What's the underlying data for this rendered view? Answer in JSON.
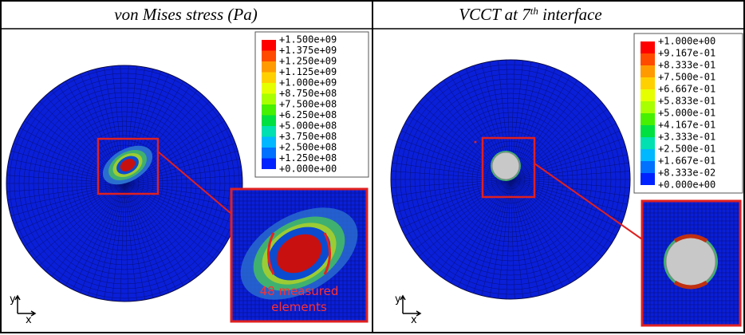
{
  "panels": [
    {
      "title": "von Mises stress (Pa)",
      "legend": [
        "+1.500e+09",
        "+1.375e+09",
        "+1.250e+09",
        "+1.125e+09",
        "+1.000e+09",
        "+8.750e+08",
        "+7.500e+08",
        "+6.250e+08",
        "+5.000e+08",
        "+3.750e+08",
        "+2.500e+08",
        "+1.250e+08",
        "+0.000e+00"
      ],
      "annotation": [
        "48 measured",
        "elements"
      ],
      "axes": [
        "y",
        "x"
      ]
    },
    {
      "title": [
        "VCCT at 7",
        "th",
        " interface"
      ],
      "legend": [
        "+1.000e+00",
        "+9.167e-01",
        "+8.333e-01",
        "+7.500e-01",
        "+6.667e-01",
        "+5.833e-01",
        "+5.000e-01",
        "+4.167e-01",
        "+3.333e-01",
        "+2.500e-01",
        "+1.667e-01",
        "+8.333e-02",
        "+0.000e+00"
      ],
      "axes": [
        "y",
        "x"
      ]
    }
  ]
}
